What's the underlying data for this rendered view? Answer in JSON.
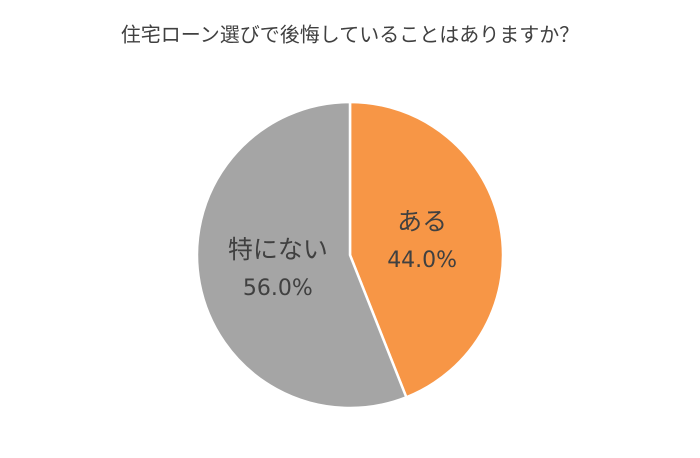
{
  "chart_data": {
    "type": "pie",
    "title": "住宅ローン選びで後悔していることはありますか？",
    "categories": [
      "ある",
      "特にない"
    ],
    "values": [
      44.0,
      56.0
    ],
    "value_labels": [
      "44.0%",
      "56.0%"
    ],
    "colors": [
      "#f79646",
      "#a5a5a5"
    ]
  }
}
